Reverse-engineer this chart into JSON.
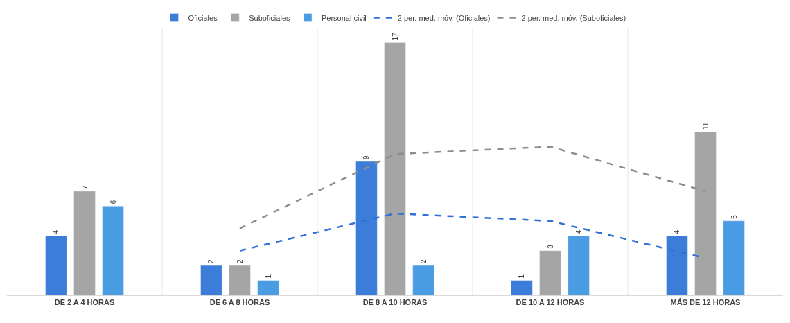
{
  "chart_data": {
    "type": "bar",
    "categories": [
      "DE 2 A 4 HORAS",
      "DE 6 A 8 HORAS",
      "DE 8 A 10 HORAS",
      "DE 10 A 12 HORAS",
      "MÁS DE 12 HORAS"
    ],
    "series": [
      {
        "name": "Oficiales",
        "color": "#3b7dd8",
        "values": [
          4,
          2,
          9,
          1,
          4
        ],
        "value_labels": [
          "4",
          "2",
          "9",
          "1",
          "4"
        ]
      },
      {
        "name": "Suboficiales",
        "color": "#a5a5a5",
        "values": [
          7,
          2,
          17,
          3,
          11
        ],
        "value_labels": [
          "7",
          "2",
          "17",
          "3",
          "11"
        ]
      },
      {
        "name": "Personal civil",
        "color": "#4a9de3",
        "values": [
          6,
          1,
          2,
          4,
          5
        ],
        "value_labels": [
          "6",
          "1",
          "2",
          "4",
          "5"
        ]
      },
      {
        "name": "2 per. med. móv. (Oficiales)",
        "type": "line",
        "line_style": "dashed",
        "color": "#2f6fd6",
        "values": [
          null,
          3,
          5.5,
          5,
          2.5
        ]
      },
      {
        "name": "2 per. med. móv. (Suboficiales)",
        "type": "line",
        "line_style": "dashed",
        "color": "#8c8c8c",
        "values": [
          null,
          4.5,
          9.5,
          10,
          7
        ]
      }
    ],
    "legend": "top",
    "ylim": [
      0,
      18
    ],
    "tick_labels": "x"
  }
}
